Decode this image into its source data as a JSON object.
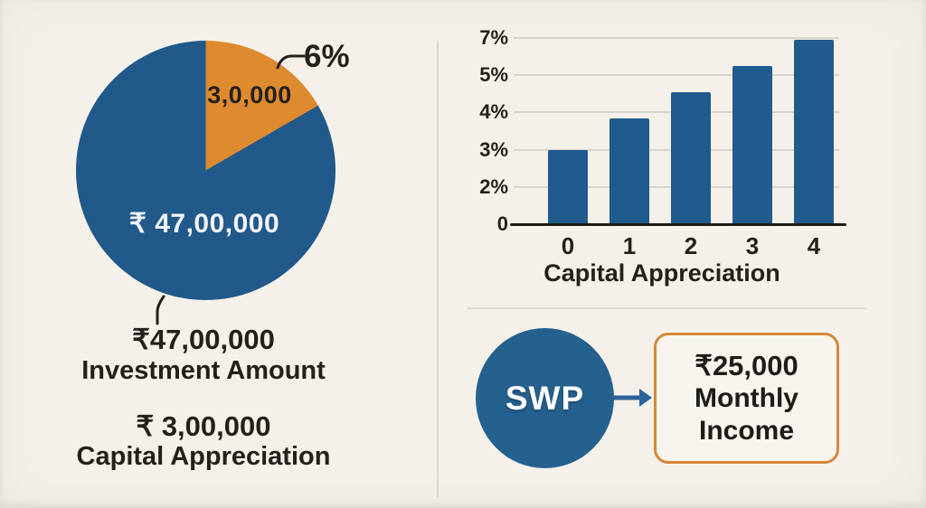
{
  "background": "#f5f1ea",
  "palette": {
    "blue": "#21598b",
    "bar_blue": "#1f5b8d",
    "orange": "#de8a2f",
    "box_border_orange": "#d6883a",
    "arrow_blue": "#2b639b",
    "grid_gray": "#d8d4cb",
    "divider_gray": "#dcd8d0",
    "axis_black": "#1d1b18",
    "text_dark": "#24211d",
    "pie_text_light": "#f0f3f6"
  },
  "pie_section": {
    "callout_pct": "6%",
    "slice_value_label": "3,0,000",
    "main_value_label": "₹ 47,00,000",
    "captions": [
      {
        "amount": "₹47,00,000",
        "label": "Investment Amount"
      },
      {
        "amount": "₹ 3,00,000",
        "label": "Capital Appreciation"
      }
    ]
  },
  "swp_section": {
    "circle_label": "SWP",
    "income_lines": [
      "₹25,000",
      "Monthly",
      "Income"
    ]
  },
  "chart_data": [
    {
      "type": "pie",
      "slices": [
        {
          "name": "Investment Amount",
          "value_label": "₹ 47,00,000",
          "value": 4700000,
          "color": "#21598b"
        },
        {
          "name": "Capital Appreciation",
          "value_label": "3,0,000",
          "value": 300000,
          "callout_pct": "6%",
          "color": "#de8a2f"
        }
      ],
      "visual_slice_angle_deg": 60,
      "legend_position": "none"
    },
    {
      "type": "bar",
      "title": "Capital Appreciation",
      "categories": [
        "0",
        "1",
        "2",
        "3",
        "4"
      ],
      "values": [
        3.0,
        3.85,
        4.55,
        5.5,
        6.9
      ],
      "yticks_bottom_to_top": [
        {
          "label": "0",
          "value": 0
        },
        {
          "label": "2%",
          "value": 2
        },
        {
          "label": "3%",
          "value": 3
        },
        {
          "label": "4%",
          "value": 4
        },
        {
          "label": "5%",
          "value": 5
        },
        {
          "label": "7%",
          "value": 7
        }
      ],
      "grid": true,
      "bar_color": "#1f5b8d",
      "axis_note": "tick labels printed at equal spacing as shown"
    }
  ]
}
